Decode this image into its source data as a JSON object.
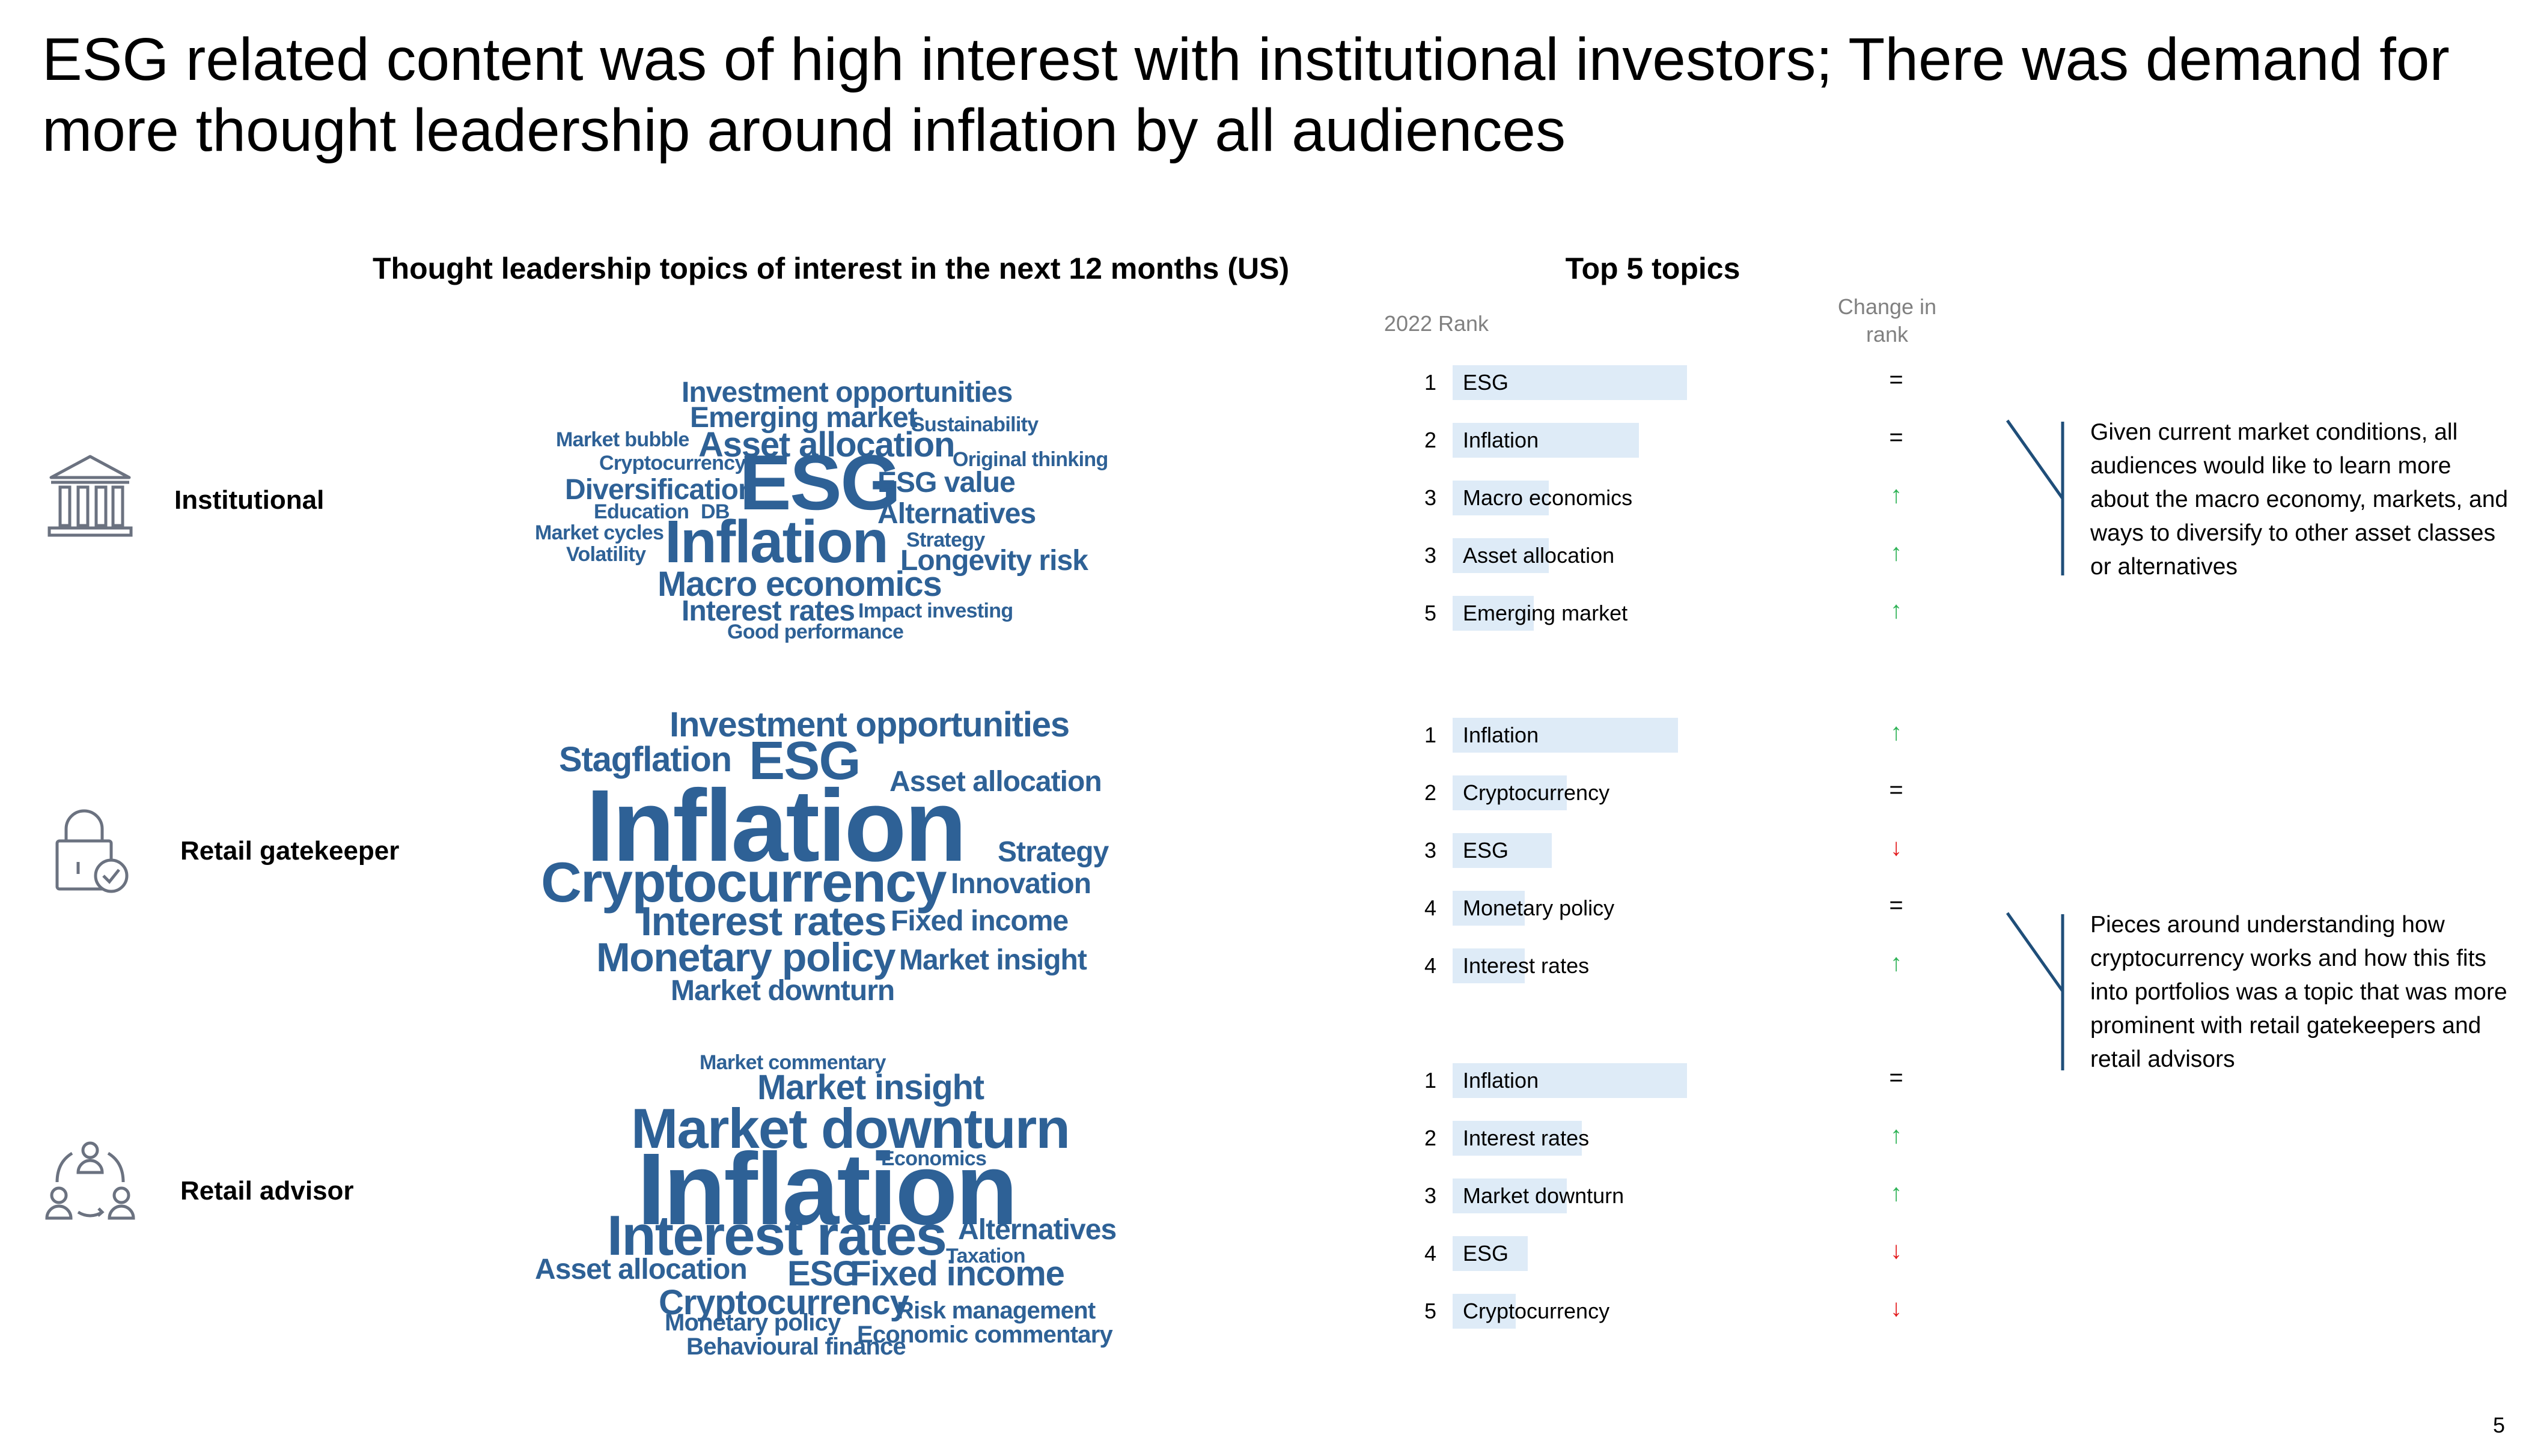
{
  "title": "ESG related content was of high interest with institutional investors; There was demand for more thought leadership around inflation by all audiences",
  "page_number": "5",
  "colors": {
    "word": "#2e6196",
    "bar": "#deebf7",
    "up": "#2db255",
    "down": "#e31a1c",
    "bracket": "#1f4e79",
    "header_gray": "#808080"
  },
  "icons": {
    "institutional": "bank-building-icon",
    "retail_gatekeeper": "padlock-check-icon",
    "retail_advisor": "people-cycle-icon"
  },
  "chart_data": [
    {
      "type": "wordcloud",
      "title": "Thought leadership topics of interest in the next 12 months (US)",
      "clouds": [
        {
          "audience": "Institutional",
          "words": [
            {
              "text": "Investment opportunities",
              "weight": 3
            },
            {
              "text": "Emerging market",
              "weight": 3
            },
            {
              "text": "Sustainability",
              "weight": 1
            },
            {
              "text": "Market bubble",
              "weight": 1
            },
            {
              "text": "Asset allocation",
              "weight": 4
            },
            {
              "text": "Original thinking",
              "weight": 1
            },
            {
              "text": "Cryptocurrency",
              "weight": 1
            },
            {
              "text": "ESG",
              "weight": 10
            },
            {
              "text": "ESG value",
              "weight": 3
            },
            {
              "text": "Diversification",
              "weight": 3
            },
            {
              "text": "Education",
              "weight": 1
            },
            {
              "text": "DB",
              "weight": 1
            },
            {
              "text": "Alternatives",
              "weight": 3
            },
            {
              "text": "Market cycles",
              "weight": 1
            },
            {
              "text": "Inflation",
              "weight": 8
            },
            {
              "text": "Strategy",
              "weight": 1
            },
            {
              "text": "Volatility",
              "weight": 1
            },
            {
              "text": "Longevity risk",
              "weight": 3
            },
            {
              "text": "Macro economics",
              "weight": 4
            },
            {
              "text": "Interest rates",
              "weight": 3
            },
            {
              "text": "Impact investing",
              "weight": 1
            },
            {
              "text": "Good performance",
              "weight": 1
            }
          ]
        },
        {
          "audience": "Retail gatekeeper",
          "words": [
            {
              "text": "Investment opportunities",
              "weight": 4
            },
            {
              "text": "Stagflation",
              "weight": 4
            },
            {
              "text": "ESG",
              "weight": 6
            },
            {
              "text": "Asset allocation",
              "weight": 3
            },
            {
              "text": "Inflation",
              "weight": 12
            },
            {
              "text": "Strategy",
              "weight": 3
            },
            {
              "text": "Cryptocurrency",
              "weight": 7
            },
            {
              "text": "Innovation",
              "weight": 3
            },
            {
              "text": "Interest rates",
              "weight": 5
            },
            {
              "text": "Fixed income",
              "weight": 3
            },
            {
              "text": "Monetary policy",
              "weight": 5
            },
            {
              "text": "Market insight",
              "weight": 3
            },
            {
              "text": "Market downturn",
              "weight": 3
            }
          ]
        },
        {
          "audience": "Retail advisor",
          "words": [
            {
              "text": "Market commentary",
              "weight": 1
            },
            {
              "text": "Market insight",
              "weight": 4
            },
            {
              "text": "Market downturn",
              "weight": 7
            },
            {
              "text": "Economics",
              "weight": 1
            },
            {
              "text": "Inflation",
              "weight": 12
            },
            {
              "text": "Interest rates",
              "weight": 7
            },
            {
              "text": "Alternatives",
              "weight": 3
            },
            {
              "text": "Taxation",
              "weight": 1
            },
            {
              "text": "Asset allocation",
              "weight": 3
            },
            {
              "text": "ESG",
              "weight": 4
            },
            {
              "text": "Fixed income",
              "weight": 4
            },
            {
              "text": "Cryptocurrency",
              "weight": 4
            },
            {
              "text": "Risk management",
              "weight": 2
            },
            {
              "text": "Monetary policy",
              "weight": 2
            },
            {
              "text": "Economic commentary",
              "weight": 2
            },
            {
              "text": "Behavioural finance",
              "weight": 2
            }
          ]
        }
      ]
    },
    {
      "type": "bar",
      "title": "Top 5 topics",
      "rank_header": "2022 Rank",
      "change_header": "Change in rank",
      "groups": [
        {
          "audience": "Institutional",
          "rows": [
            {
              "rank": "1",
              "topic": "ESG",
              "value": 0.78,
              "change": "="
            },
            {
              "rank": "2",
              "topic": "Inflation",
              "value": 0.62,
              "change": "="
            },
            {
              "rank": "3",
              "topic": "Macro economics",
              "value": 0.32,
              "change": "↑"
            },
            {
              "rank": "3",
              "topic": "Asset allocation",
              "value": 0.32,
              "change": "↑"
            },
            {
              "rank": "5",
              "topic": "Emerging market",
              "value": 0.27,
              "change": "↑"
            }
          ]
        },
        {
          "audience": "Retail gatekeeper",
          "rows": [
            {
              "rank": "1",
              "topic": "Inflation",
              "value": 0.75,
              "change": "↑"
            },
            {
              "rank": "2",
              "topic": "Cryptocurrency",
              "value": 0.38,
              "change": "="
            },
            {
              "rank": "3",
              "topic": "ESG",
              "value": 0.33,
              "change": "↓"
            },
            {
              "rank": "4",
              "topic": "Monetary policy",
              "value": 0.24,
              "change": "="
            },
            {
              "rank": "4",
              "topic": "Interest rates",
              "value": 0.24,
              "change": "↑"
            }
          ]
        },
        {
          "audience": "Retail advisor",
          "rows": [
            {
              "rank": "1",
              "topic": "Inflation",
              "value": 0.78,
              "change": "="
            },
            {
              "rank": "2",
              "topic": "Interest rates",
              "value": 0.43,
              "change": "↑"
            },
            {
              "rank": "3",
              "topic": "Market downturn",
              "value": 0.38,
              "change": "↑"
            },
            {
              "rank": "4",
              "topic": "ESG",
              "value": 0.25,
              "change": "↓"
            },
            {
              "rank": "5",
              "topic": "Cryptocurrency",
              "value": 0.21,
              "change": "↓"
            }
          ]
        }
      ]
    }
  ],
  "notes": [
    "Given current market conditions, all audiences would like to learn more about the macro economy, markets, and ways to diversify to other asset classes or alternatives",
    "Pieces around understanding how cryptocurrency works and how this fits into portfolios was a topic that was more prominent with retail gatekeepers and retail advisors"
  ]
}
